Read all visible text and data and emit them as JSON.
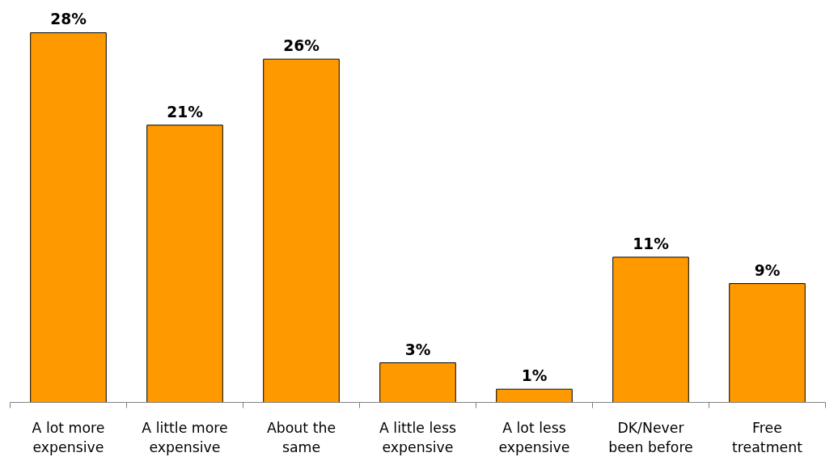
{
  "chart_data": {
    "type": "bar",
    "categories": [
      "A lot more\nexpensive",
      "A little more\nexpensive",
      "About the\nsame",
      "A little less\nexpensive",
      "A lot less\nexpensive",
      "DK/Never\nbeen before",
      "Free\ntreatment"
    ],
    "values": [
      28,
      21,
      26,
      3,
      1,
      11,
      9
    ],
    "color": "#ff9900",
    "value_labels": [
      "28%",
      "21%",
      "26%",
      "3%",
      "1%",
      "11%",
      "9%"
    ],
    "grid": false,
    "tick_labels": "x"
  }
}
